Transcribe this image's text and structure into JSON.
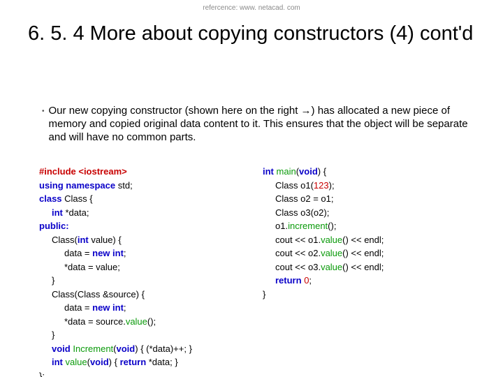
{
  "reference": "refercence: www. netacad. com",
  "title": "6. 5. 4 More about copying constructors (4) cont'd",
  "bullet": "Our new copying constructor (shown here on the right →) has allocated a new piece of memory and copied original data content to it. This ensures that the object will be separate and will have no common parts.",
  "code": {
    "colors": {
      "keyword": "#0a00c8",
      "preprocessor": "#c80000",
      "function": "#0a9a0a",
      "number": "#c80000",
      "text": "#000000",
      "background": "#ffffff"
    },
    "font_size_pt": 10,
    "left": [
      {
        "t": [
          [
            "prag",
            "#include <iostream>"
          ]
        ]
      },
      {
        "t": [
          [
            "kw",
            "using namespace"
          ],
          [
            "id",
            " std;"
          ]
        ]
      },
      {
        "t": [
          [
            "kw",
            "class"
          ],
          [
            "id",
            " Class {"
          ]
        ]
      },
      {
        "i": 1,
        "t": [
          [
            "kw",
            "int"
          ],
          [
            "id",
            " *data;"
          ]
        ]
      },
      {
        "t": [
          [
            "kw",
            "public:"
          ]
        ]
      },
      {
        "i": 1,
        "t": [
          [
            "id",
            "Class("
          ],
          [
            "kw",
            "int"
          ],
          [
            "id",
            " value) {"
          ]
        ]
      },
      {
        "i": 2,
        "t": [
          [
            "id",
            "data = "
          ],
          [
            "kw",
            "new int"
          ],
          [
            "id",
            ";"
          ]
        ]
      },
      {
        "i": 2,
        "t": [
          [
            "id",
            "*data = value;"
          ]
        ]
      },
      {
        "i": 1,
        "t": [
          [
            "id",
            "}"
          ]
        ]
      },
      {
        "i": 1,
        "t": [
          [
            "id",
            "Class(Class &source) {"
          ]
        ]
      },
      {
        "i": 2,
        "t": [
          [
            "id",
            "data = "
          ],
          [
            "kw",
            "new int"
          ],
          [
            "id",
            ";"
          ]
        ]
      },
      {
        "i": 2,
        "t": [
          [
            "id",
            "*data = source."
          ],
          [
            "fn",
            "value"
          ],
          [
            "id",
            "();"
          ]
        ]
      },
      {
        "i": 1,
        "t": [
          [
            "id",
            "}"
          ]
        ]
      },
      {
        "i": 1,
        "t": [
          [
            "kw",
            "void"
          ],
          [
            "id",
            " "
          ],
          [
            "fn",
            "Increment"
          ],
          [
            "id",
            "("
          ],
          [
            "kw",
            "void"
          ],
          [
            "id",
            ")  {     (*data)++;  }"
          ]
        ]
      },
      {
        "i": 1,
        "t": [
          [
            "kw",
            "int"
          ],
          [
            "id",
            " "
          ],
          [
            "fn",
            "value"
          ],
          [
            "id",
            "("
          ],
          [
            "kw",
            "void"
          ],
          [
            "id",
            ")  { "
          ],
          [
            "kw",
            "return"
          ],
          [
            "id",
            " *data;  }"
          ]
        ]
      },
      {
        "t": [
          [
            "id",
            "};"
          ]
        ]
      }
    ],
    "right": [
      {
        "t": [
          [
            "kw",
            "int"
          ],
          [
            "id",
            " "
          ],
          [
            "fn",
            "main"
          ],
          [
            "id",
            "("
          ],
          [
            "kw",
            "void"
          ],
          [
            "id",
            ") {"
          ]
        ]
      },
      {
        "i": 1,
        "t": [
          [
            "id",
            "Class o1("
          ],
          [
            "num",
            "123"
          ],
          [
            "id",
            ");"
          ]
        ]
      },
      {
        "i": 1,
        "t": [
          [
            "id",
            "Class o2 = o1;"
          ]
        ]
      },
      {
        "i": 1,
        "t": [
          [
            "id",
            "Class o3(o2);"
          ]
        ]
      },
      {
        "i": 1,
        "t": [
          [
            "id",
            "o1."
          ],
          [
            "fn",
            "increment"
          ],
          [
            "id",
            "();"
          ]
        ]
      },
      {
        "i": 1,
        "t": [
          [
            "id",
            "cout << o1."
          ],
          [
            "fn",
            "value"
          ],
          [
            "id",
            "() << endl;"
          ]
        ]
      },
      {
        "i": 1,
        "t": [
          [
            "id",
            "cout << o2."
          ],
          [
            "fn",
            "value"
          ],
          [
            "id",
            "() << endl;"
          ]
        ]
      },
      {
        "i": 1,
        "t": [
          [
            "id",
            "cout << o3."
          ],
          [
            "fn",
            "value"
          ],
          [
            "id",
            "() << endl;"
          ]
        ]
      },
      {
        "i": 1,
        "t": [
          [
            "kw",
            "return"
          ],
          [
            "id",
            " "
          ],
          [
            "num",
            "0"
          ],
          [
            "id",
            ";"
          ]
        ]
      },
      {
        "t": [
          [
            "id",
            "}"
          ]
        ]
      }
    ]
  }
}
